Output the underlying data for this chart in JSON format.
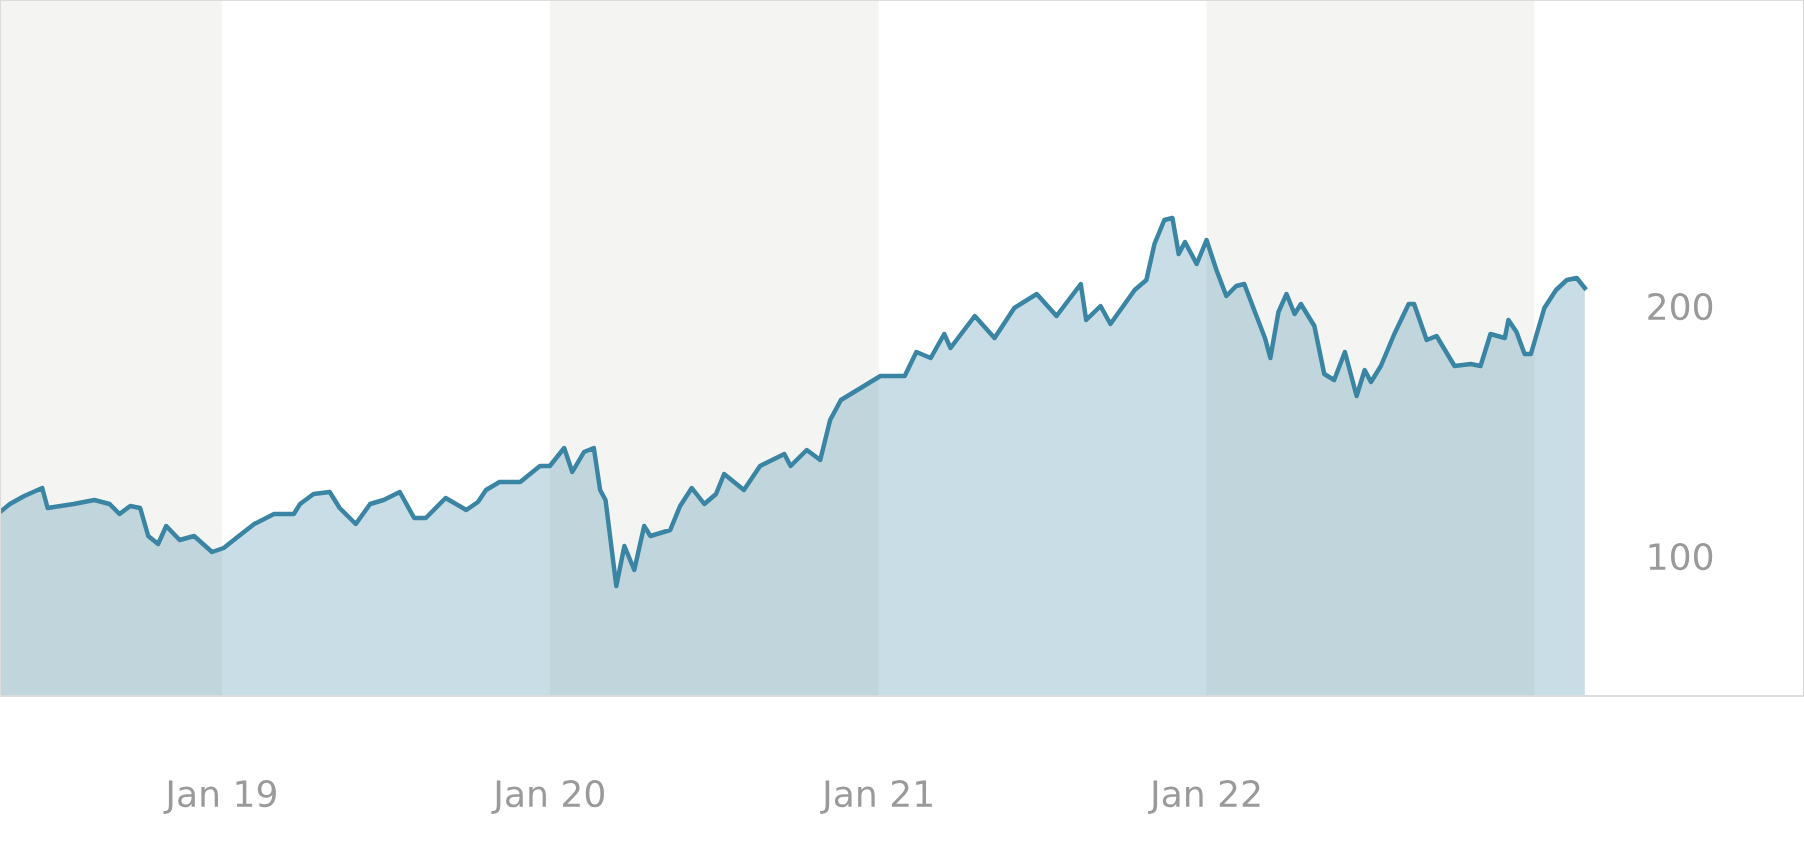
{
  "chart_data": {
    "type": "area",
    "x": [
      "2018-04-29",
      "2018-05-10",
      "2018-05-26",
      "2018-06-15",
      "2018-06-21",
      "2018-07-20",
      "2018-08-12",
      "2018-08-29",
      "2018-09-09",
      "2018-09-21",
      "2018-10-02",
      "2018-10-11",
      "2018-10-22",
      "2018-10-31",
      "2018-11-15",
      "2018-12-01",
      "2018-12-21",
      "2019-01-03",
      "2019-01-17",
      "2019-02-06",
      "2019-02-28",
      "2019-03-22",
      "2019-03-29",
      "2019-04-13",
      "2019-05-01",
      "2019-05-12",
      "2019-05-30",
      "2019-06-15",
      "2019-06-30",
      "2019-07-18",
      "2019-08-03",
      "2019-08-16",
      "2019-09-07",
      "2019-09-30",
      "2019-10-13",
      "2019-10-22",
      "2019-11-06",
      "2019-11-29",
      "2019-12-21",
      "2020-01-01",
      "2020-01-17",
      "2020-01-26",
      "2020-02-08",
      "2020-02-19",
      "2020-02-26",
      "2020-03-03",
      "2020-03-15",
      "2020-03-24",
      "2020-04-04",
      "2020-04-15",
      "2020-04-22",
      "2020-05-14",
      "2020-05-25",
      "2020-06-07",
      "2020-06-21",
      "2020-07-04",
      "2020-07-13",
      "2020-08-04",
      "2020-08-22",
      "2020-09-18",
      "2020-09-25",
      "2020-10-13",
      "2020-10-28",
      "2020-11-08",
      "2020-11-20",
      "2020-12-12",
      "2021-01-03",
      "2021-01-30",
      "2021-02-12",
      "2021-02-28",
      "2021-03-15",
      "2021-03-22",
      "2021-04-18",
      "2021-05-10",
      "2021-06-01",
      "2021-06-26",
      "2021-07-18",
      "2021-08-14",
      "2021-08-20",
      "2021-09-05",
      "2021-09-16",
      "2021-10-13",
      "2021-10-26",
      "2021-11-04",
      "2021-11-15",
      "2021-11-24",
      "2021-12-01",
      "2021-12-08",
      "2021-12-21",
      "2022-01-01",
      "2022-01-12",
      "2022-01-23",
      "2022-02-03",
      "2022-02-12",
      "2022-02-23",
      "2022-03-07",
      "2022-03-13",
      "2022-03-22",
      "2022-03-31",
      "2022-04-09",
      "2022-04-16",
      "2022-05-01",
      "2022-05-12",
      "2022-05-23",
      "2022-06-04",
      "2022-06-17",
      "2022-06-26",
      "2022-07-03",
      "2022-07-14",
      "2022-07-29",
      "2022-08-14",
      "2022-08-20",
      "2022-09-03",
      "2022-09-14",
      "2022-10-04",
      "2022-10-22",
      "2022-11-02",
      "2022-11-13",
      "2022-11-29",
      "2022-12-03",
      "2022-12-12",
      "2022-12-21",
      "2022-12-28",
      "2023-01-12",
      "2023-01-25",
      "2023-02-06",
      "2023-02-17",
      "2023-02-26"
    ],
    "series": [
      {
        "color": "#3a84a4",
        "values": [
          117.6,
          120.8,
          124.0,
          127.2,
          119.2,
          120.8,
          122.4,
          120.8,
          116.8,
          120.0,
          119.2,
          108.0,
          104.8,
          112.0,
          106.4,
          108.0,
          101.6,
          103.2,
          107.2,
          112.8,
          116.8,
          116.8,
          120.8,
          124.8,
          125.6,
          119.2,
          112.8,
          120.8,
          122.4,
          125.6,
          115.2,
          115.2,
          123.2,
          118.4,
          121.6,
          126.4,
          129.6,
          129.6,
          136.0,
          136.0,
          143.2,
          133.6,
          141.6,
          143.2,
          126.4,
          122.4,
          88.0,
          104.0,
          94.4,
          112.0,
          108.0,
          110.4,
          120.0,
          127.2,
          120.8,
          124.8,
          132.8,
          126.4,
          136.0,
          140.8,
          136.0,
          142.4,
          138.4,
          154.4,
          162.4,
          167.2,
          172.0,
          172.0,
          181.6,
          179.2,
          188.8,
          183.2,
          196.0,
          187.2,
          199.2,
          204.8,
          196.0,
          208.8,
          194.4,
          200.0,
          192.8,
          206.4,
          210.4,
          224.8,
          234.4,
          235.2,
          220.8,
          225.6,
          216.8,
          226.4,
          214.4,
          204.0,
          208.0,
          208.8,
          198.4,
          187.2,
          179.2,
          197.6,
          204.8,
          196.8,
          200.8,
          192.0,
          172.8,
          170.4,
          181.6,
          164.0,
          174.4,
          169.6,
          176.0,
          188.8,
          200.8,
          200.8,
          186.4,
          188.0,
          176.0,
          176.8,
          176.0,
          188.8,
          187.2,
          194.4,
          189.6,
          180.8,
          180.8,
          199.2,
          206.4,
          210.4,
          211.2,
          207.2
        ]
      }
    ],
    "xlim": [
      "2018-04-29",
      "2023-10-28"
    ],
    "ylim": [
      44,
      322.4
    ],
    "yticks": [
      100,
      200
    ],
    "xticks": [
      {
        "value": "2019-01-01",
        "label": "Jan 19"
      },
      {
        "value": "2020-01-01",
        "label": "Jan 20"
      },
      {
        "value": "2021-01-01",
        "label": "Jan 21"
      },
      {
        "value": "2022-01-01",
        "label": "Jan 22"
      }
    ],
    "bands": [
      {
        "axis": "x",
        "from": "2018-04-29",
        "to": "2019-01-01",
        "color": "#f4f4f2"
      },
      {
        "axis": "x",
        "from": "2020-01-01",
        "to": "2021-01-01",
        "color": "#f4f4f2"
      },
      {
        "axis": "x",
        "from": "2022-01-01",
        "to": "2023-01-01",
        "color": "#f4f4f2"
      }
    ],
    "grid": false,
    "legend": false,
    "line_style": "solid",
    "marker": "none"
  }
}
